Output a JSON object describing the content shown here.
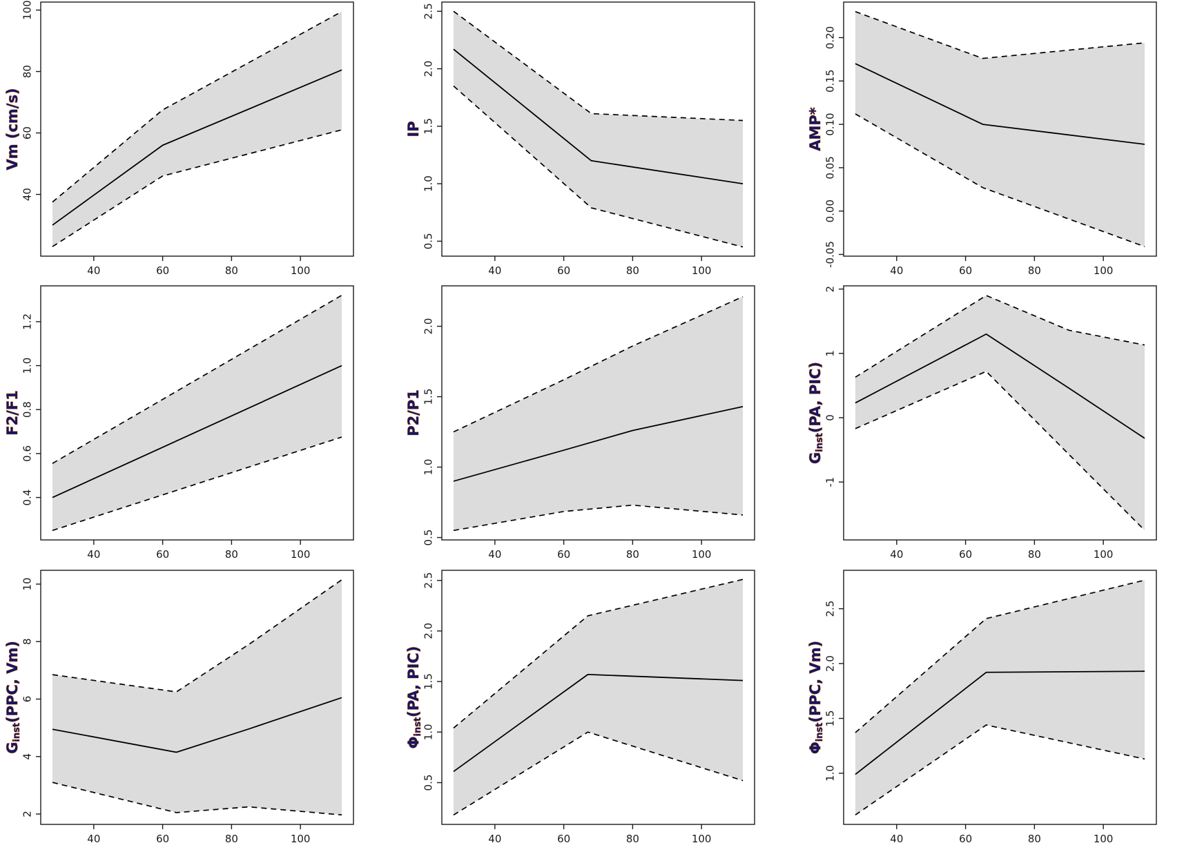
{
  "figure": {
    "background": "#ffffff",
    "rows": 3,
    "cols": 3,
    "band_fill": "#dcdcdc",
    "line_color": "#000000",
    "box_color": "#1a1a1a",
    "tick_label_color": "#1a1a1a",
    "ylabel_fill": "#161663",
    "ylabel_fringe": "#e67300"
  },
  "axes": {
    "xlabel": "",
    "xlim": [
      24.6,
      115.4
    ],
    "xticks": [
      40,
      60,
      80,
      100
    ],
    "xtick_labels": [
      "40",
      "60",
      "80",
      "100"
    ]
  },
  "chart_data": [
    {
      "id": "vm",
      "type": "line",
      "grid": false,
      "ylabel_base": "Vm (cm/s)",
      "ylabel_sub": "",
      "ylabel_rest": "",
      "x": [
        28,
        60,
        112
      ],
      "series": [
        {
          "name": "mean",
          "values": [
            30,
            56,
            80.5
          ]
        },
        {
          "name": "upper",
          "values": [
            37.5,
            67.5,
            99.5
          ]
        },
        {
          "name": "lower",
          "values": [
            23,
            46,
            61
          ]
        }
      ],
      "ylim": [
        19.9,
        102.6
      ],
      "ytick_vals": [
        40,
        60,
        80,
        100
      ],
      "ytick_labels": [
        "40",
        "60",
        "80",
        "100"
      ]
    },
    {
      "id": "ip",
      "type": "line",
      "grid": false,
      "ylabel_base": "IP",
      "ylabel_sub": "",
      "ylabel_rest": "",
      "x": [
        28,
        68,
        112
      ],
      "series": [
        {
          "name": "mean",
          "values": [
            2.17,
            1.2,
            1.0
          ]
        },
        {
          "name": "upper",
          "values": [
            2.5,
            1.61,
            1.55
          ]
        },
        {
          "name": "lower",
          "values": [
            1.85,
            0.79,
            0.45
          ]
        }
      ],
      "ylim": [
        0.37,
        2.58
      ],
      "ytick_vals": [
        0.5,
        1.0,
        1.5,
        2.0,
        2.5
      ],
      "ytick_labels": [
        "0.5",
        "1.0",
        "1.5",
        "2.0",
        "2.5"
      ]
    },
    {
      "id": "amp",
      "type": "line",
      "grid": false,
      "ylabel_base": "AMP*",
      "ylabel_sub": "",
      "ylabel_rest": "",
      "x": [
        28,
        65,
        112
      ],
      "series": [
        {
          "name": "mean",
          "values": [
            0.17,
            0.1,
            0.077
          ]
        },
        {
          "name": "upper",
          "values": [
            0.23,
            0.176,
            0.194
          ]
        },
        {
          "name": "lower",
          "values": [
            0.112,
            0.027,
            -0.041
          ]
        }
      ],
      "ylim": [
        -0.052,
        0.241
      ],
      "ytick_vals": [
        -0.05,
        0.0,
        0.05,
        0.1,
        0.15,
        0.2
      ],
      "ytick_labels": [
        "-0.05",
        "0.00",
        "0.05",
        "0.10",
        "0.15",
        "0.20"
      ]
    },
    {
      "id": "f2f1",
      "type": "line",
      "grid": false,
      "ylabel_base": "F2/F1",
      "ylabel_sub": "",
      "ylabel_rest": "",
      "x": [
        28,
        112
      ],
      "series": [
        {
          "name": "mean",
          "values": [
            0.4,
            1.0
          ]
        },
        {
          "name": "upper",
          "values": [
            0.555,
            1.32
          ]
        },
        {
          "name": "lower",
          "values": [
            0.25,
            0.675
          ]
        }
      ],
      "ylim": [
        0.207,
        1.363
      ],
      "ytick_vals": [
        0.4,
        0.6,
        0.8,
        1.0,
        1.2
      ],
      "ytick_labels": [
        "0.4",
        "0.6",
        "0.8",
        "1.0",
        "1.2"
      ]
    },
    {
      "id": "p2p1",
      "type": "line",
      "grid": false,
      "ylabel_base": "P2/P1",
      "ylabel_sub": "",
      "ylabel_rest": "",
      "x": [
        28,
        60,
        80,
        112
      ],
      "series": [
        {
          "name": "mean",
          "values": [
            0.9,
            1.12,
            1.26,
            1.43
          ]
        },
        {
          "name": "upper",
          "values": [
            1.25,
            1.62,
            1.86,
            2.21
          ]
        },
        {
          "name": "lower",
          "values": [
            0.55,
            0.685,
            0.73,
            0.66
          ]
        }
      ],
      "ylim": [
        0.483,
        2.287
      ],
      "ytick_vals": [
        0.5,
        1.0,
        1.5,
        2.0
      ],
      "ytick_labels": [
        "0.5",
        "1.0",
        "1.5",
        "2.0"
      ]
    },
    {
      "id": "ginst-pa-pic",
      "type": "line",
      "grid": false,
      "ylabel_base": "G",
      "ylabel_sub": "inst",
      "ylabel_rest": "(PA, PIC)",
      "x": [
        28,
        66,
        90,
        112
      ],
      "series": [
        {
          "name": "mean",
          "values": [
            0.23,
            1.3,
            0.46,
            -0.32
          ]
        },
        {
          "name": "upper",
          "values": [
            0.63,
            1.9,
            1.36,
            1.13
          ]
        },
        {
          "name": "lower",
          "values": [
            -0.17,
            0.72,
            -0.57,
            -1.75
          ]
        }
      ],
      "ylim": [
        -1.9,
        2.05
      ],
      "ytick_vals": [
        -1,
        0,
        1,
        2
      ],
      "ytick_labels": [
        "-1",
        "0",
        "1",
        "2"
      ]
    },
    {
      "id": "ginst-ppc-vm",
      "type": "line",
      "grid": false,
      "ylabel_base": "G",
      "ylabel_sub": "inst",
      "ylabel_rest": "(PPC, Vm)",
      "x": [
        28,
        64,
        85,
        112
      ],
      "series": [
        {
          "name": "mean",
          "values": [
            4.95,
            4.15,
            4.96,
            6.05
          ]
        },
        {
          "name": "upper",
          "values": [
            6.85,
            6.25,
            7.9,
            10.15
          ]
        },
        {
          "name": "lower",
          "values": [
            3.1,
            2.05,
            2.25,
            1.97
          ]
        }
      ],
      "ylim": [
        1.64,
        10.48
      ],
      "ytick_vals": [
        2,
        4,
        6,
        8,
        10
      ],
      "ytick_labels": [
        "2",
        "4",
        "6",
        "8",
        "10"
      ]
    },
    {
      "id": "phiinst-pa-pic",
      "type": "line",
      "grid": false,
      "ylabel_base": "Φ",
      "ylabel_sub": "inst",
      "ylabel_rest": "(PA, PIC)",
      "x": [
        28,
        67,
        112
      ],
      "series": [
        {
          "name": "mean",
          "values": [
            0.61,
            1.57,
            1.51
          ]
        },
        {
          "name": "upper",
          "values": [
            1.04,
            2.15,
            2.51
          ]
        },
        {
          "name": "lower",
          "values": [
            0.18,
            1.0,
            0.52
          ]
        }
      ],
      "ylim": [
        0.087,
        2.6
      ],
      "ytick_vals": [
        0.5,
        1.0,
        1.5,
        2.0,
        2.5
      ],
      "ytick_labels": [
        "0.5",
        "1.0",
        "1.5",
        "2.0",
        "2.5"
      ]
    },
    {
      "id": "phiinst-ppc-vm",
      "type": "line",
      "grid": false,
      "ylabel_base": "Φ",
      "ylabel_sub": "inst",
      "ylabel_rest": "(PPC, Vm)",
      "x": [
        28,
        66,
        112
      ],
      "series": [
        {
          "name": "mean",
          "values": [
            0.99,
            1.92,
            1.93
          ]
        },
        {
          "name": "upper",
          "values": [
            1.37,
            2.41,
            2.76
          ]
        },
        {
          "name": "lower",
          "values": [
            0.62,
            1.44,
            1.13
          ]
        }
      ],
      "ylim": [
        0.534,
        2.85
      ],
      "ytick_vals": [
        1.0,
        1.5,
        2.0,
        2.5
      ],
      "ytick_labels": [
        "1.0",
        "1.5",
        "2.0",
        "2.5"
      ]
    }
  ]
}
